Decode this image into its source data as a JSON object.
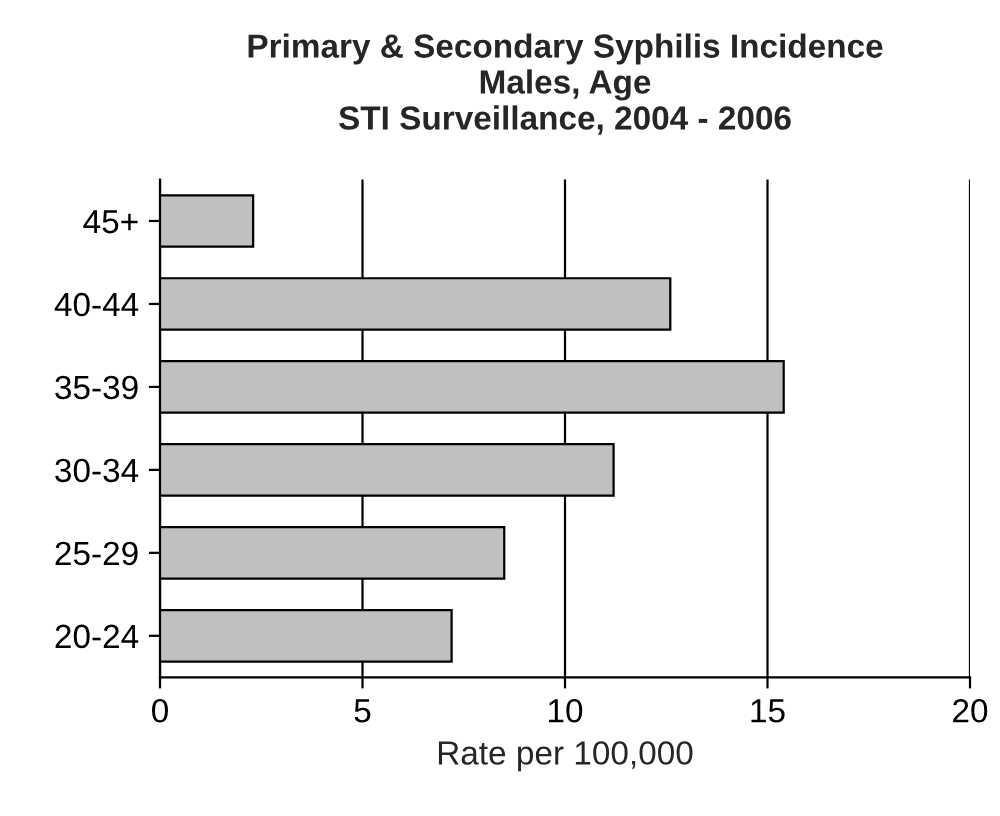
{
  "chart_data": {
    "type": "bar",
    "orientation": "horizontal",
    "title": "Primary & Secondary Syphilis Incidence\nMales, Age\nSTI Surveillance, 2004 - 2006",
    "xlabel": "Rate per 100,000",
    "categories": [
      "45+",
      "40-44",
      "35-39",
      "30-34",
      "25-29",
      "20-24"
    ],
    "values": [
      2.3,
      12.6,
      15.4,
      11.2,
      8.5,
      7.2
    ],
    "color": "#c0c0c0",
    "xlim": [
      0,
      20
    ],
    "xticks": [
      0,
      5,
      10,
      15,
      20
    ],
    "grid": "x"
  }
}
